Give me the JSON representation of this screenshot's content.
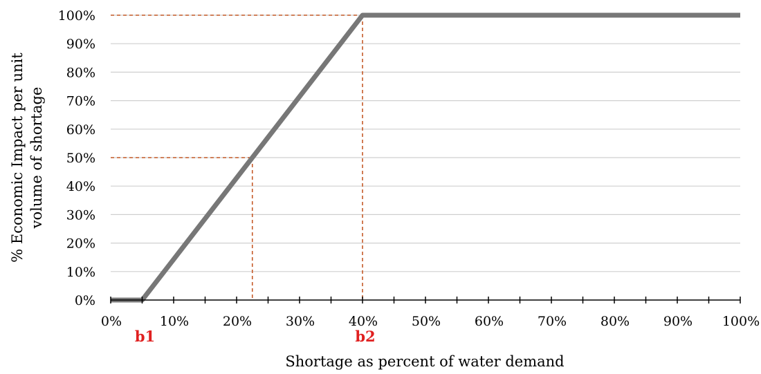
{
  "chart_data": {
    "type": "line",
    "title": "",
    "xlabel": "Shortage as percent of water demand",
    "ylabel_lines": [
      "% Economic Impact per unit",
      "volume of shortage"
    ],
    "x_ticks": [
      "0%",
      "10%",
      "20%",
      "30%",
      "40%",
      "50%",
      "60%",
      "70%",
      "80%",
      "90%",
      "100%"
    ],
    "y_ticks": [
      "0%",
      "10%",
      "20%",
      "30%",
      "40%",
      "50%",
      "60%",
      "70%",
      "80%",
      "90%",
      "100%"
    ],
    "xlim": [
      0,
      100
    ],
    "ylim": [
      0,
      100
    ],
    "grid": "horizontal",
    "series": [
      {
        "x": [
          0,
          5,
          40,
          100
        ],
        "y": [
          0,
          0,
          100,
          100
        ]
      }
    ],
    "reference_lines": [
      {
        "x": 40,
        "y": 100
      },
      {
        "x": 22.5,
        "y": 50
      }
    ],
    "annotations": [
      {
        "text": "b1",
        "x": 5
      },
      {
        "text": "b2",
        "x": 40
      }
    ],
    "colors": {
      "series_line": "#777777",
      "reference_line": "#c55a28",
      "annotation": "#e02020",
      "grid": "#cfcfcf",
      "axis": "#000000"
    }
  }
}
